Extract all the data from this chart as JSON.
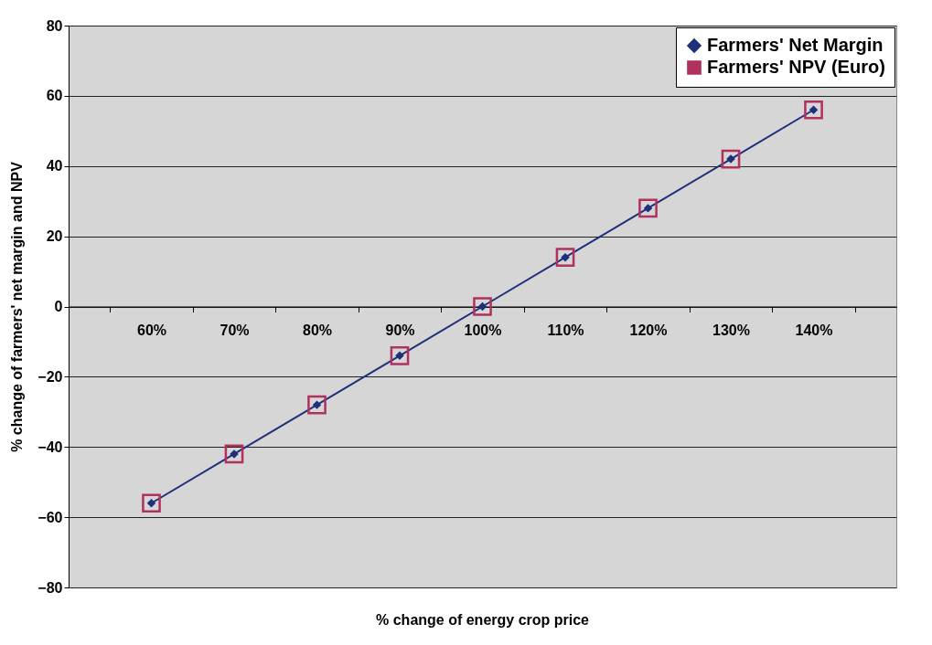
{
  "chart_data": {
    "type": "line",
    "xlabel": "% change of energy crop price",
    "ylabel": "% change of farmers' net margin and NPV",
    "categories": [
      "60%",
      "70%",
      "80%",
      "90%",
      "100%",
      "110%",
      "120%",
      "130%",
      "140%"
    ],
    "series": [
      {
        "name": "Farmers' Net Margin",
        "marker": "diamond",
        "color": "#1f2f7a",
        "values": [
          -56,
          -42,
          -28,
          -14,
          0,
          14,
          28,
          42,
          56
        ]
      },
      {
        "name": "Farmers' NPV (Euro)",
        "type": "scatter",
        "marker": "square",
        "color": "#b03060",
        "values": [
          -56,
          -42,
          -28,
          -14,
          0,
          14,
          28,
          42,
          56
        ]
      }
    ],
    "ylim": [
      -80,
      80
    ],
    "yticks": [
      -80,
      -60,
      -40,
      -20,
      0,
      20,
      40,
      60,
      80
    ],
    "grid": "y",
    "legend": "top right"
  }
}
